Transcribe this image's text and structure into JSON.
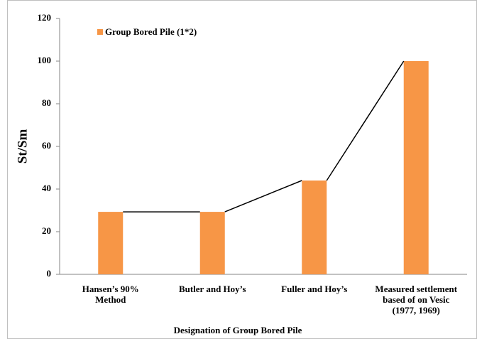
{
  "chart_data": {
    "type": "bar",
    "categories": [
      [
        "Hansen’s 90%",
        "Method"
      ],
      [
        "Butler and Hoy’s"
      ],
      [
        "Fuller and Hoy’s"
      ],
      [
        "Measured settlement",
        "based of on Vesic",
        "(1977, 1969)"
      ]
    ],
    "series": [
      {
        "name": "Group Bored Pile (1*2)",
        "color": "#f79646",
        "values": [
          29.3,
          29.3,
          44,
          100
        ]
      }
    ],
    "x_label": "Designation of Group Bored Pile",
    "y_label": "St/Sm",
    "ylim": [
      0,
      120
    ],
    "yticks": [
      0,
      20,
      40,
      60,
      80,
      100,
      120
    ],
    "connector_line": true,
    "legend": "top-left"
  }
}
